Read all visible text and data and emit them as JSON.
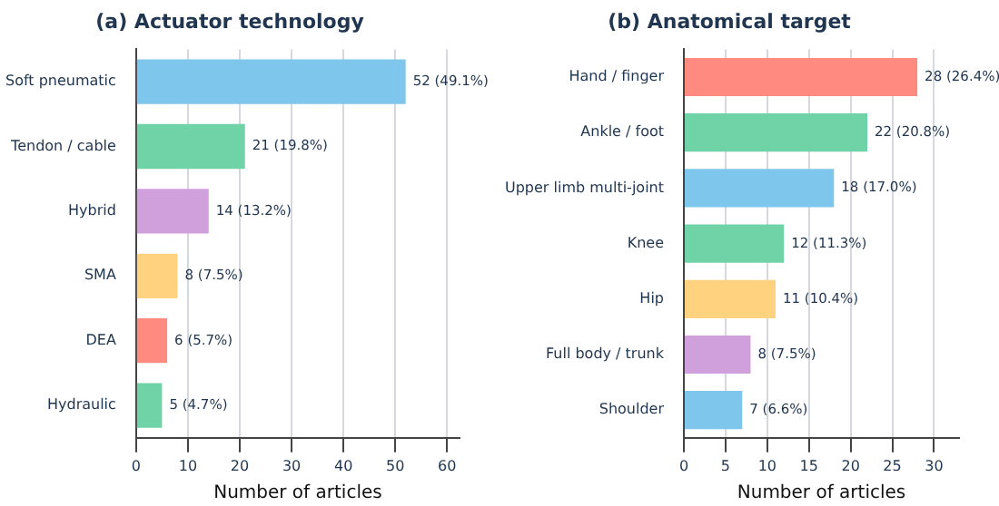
{
  "chart_data": [
    {
      "type": "bar",
      "orientation": "horizontal",
      "title": "(a) Actuator technology",
      "xlabel": "Number of articles",
      "categories": [
        "Soft pneumatic",
        "Tendon / cable",
        "Hybrid",
        "SMA",
        "DEA",
        "Hydraulic"
      ],
      "values": [
        52,
        21,
        14,
        8,
        6,
        5
      ],
      "colors": [
        "#7fc6ec",
        "#6fd3a7",
        "#cfa0dc",
        "#ffd280",
        "#ff8a7f",
        "#6fd3a7"
      ],
      "value_labels": [
        "52 (49.1%)",
        "21 (19.8%)",
        "14 (13.2%)",
        "8 (7.5%)",
        "6 (5.7%)",
        "5 (4.7%)"
      ],
      "xlim": [
        0,
        62.4
      ],
      "xticks": [
        0,
        10,
        20,
        30,
        40,
        50,
        60
      ],
      "grid": "x"
    },
    {
      "type": "bar",
      "orientation": "horizontal",
      "title": "(b) Anatomical target",
      "xlabel": "Number of articles",
      "categories": [
        "Hand / finger",
        "Ankle / foot",
        "Upper limb multi-joint",
        "Knee",
        "Hip",
        "Full body / trunk",
        "Shoulder"
      ],
      "values": [
        28,
        22,
        18,
        12,
        11,
        8,
        7
      ],
      "colors": [
        "#ff8a7f",
        "#6fd3a7",
        "#7fc6ec",
        "#6fd3a7",
        "#ffd280",
        "#cfa0dc",
        "#7fc6ec"
      ],
      "value_labels": [
        "28 (26.4%)",
        "22 (20.8%)",
        "18 (17.0%)",
        "12 (11.3%)",
        "11 (10.4%)",
        "8 (7.5%)",
        "7 (6.6%)"
      ],
      "xlim": [
        0,
        33
      ],
      "xticks": [
        0,
        5,
        10,
        15,
        20,
        25,
        30
      ],
      "grid": "x"
    }
  ]
}
